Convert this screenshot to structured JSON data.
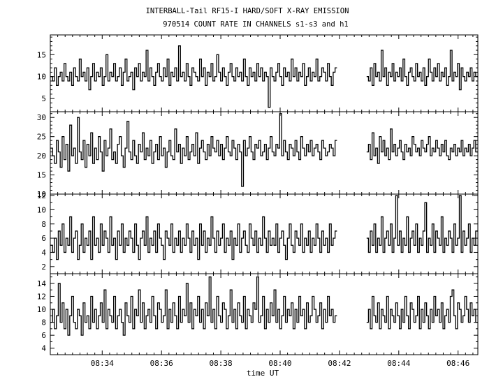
{
  "chart_data": {
    "type": "line",
    "title": "INTERBALL-Tail RF15-I HARD/SOFT X-RAY EMISSION",
    "subtitle": "970514  COUNT RATE IN CHANNELS s1-s3 and h1",
    "xlabel": "time UT",
    "x_ticks": [
      "08:34",
      "08:36",
      "08:38",
      "08:40",
      "08:42",
      "08:44",
      "08:46"
    ],
    "x_range": [
      "08:32:15",
      "08:46:40"
    ],
    "data_gap": [
      "08:41:55",
      "08:42:55"
    ],
    "grid": false,
    "panels": [
      {
        "ylim": [
          2,
          19.5
        ],
        "yticks": [
          "5",
          "10",
          "15"
        ],
        "values": [
          10,
          9,
          12,
          8,
          10,
          11,
          9,
          13,
          10,
          9,
          11,
          8,
          12,
          10,
          9,
          14,
          10,
          11,
          9,
          12,
          7,
          10,
          13,
          9,
          11,
          10,
          12,
          8,
          10,
          15,
          9,
          11,
          10,
          13,
          9,
          10,
          12,
          8,
          11,
          14,
          9,
          10,
          11,
          7,
          12,
          10,
          13,
          9,
          11,
          10,
          16,
          9,
          12,
          10,
          8,
          11,
          13,
          10,
          9,
          12,
          10,
          14,
          8,
          11,
          10,
          12,
          9,
          17,
          10,
          11,
          9,
          13,
          10,
          8,
          12,
          11,
          10,
          9,
          14,
          10,
          12,
          8,
          11,
          10,
          13,
          9,
          10,
          15,
          11,
          9,
          12,
          10,
          8,
          11,
          13,
          10,
          9,
          12,
          10,
          11,
          9,
          14,
          10,
          8,
          12,
          10,
          11,
          9,
          13,
          10,
          12,
          9,
          11,
          10,
          3,
          12,
          10,
          9,
          11,
          13,
          10,
          8,
          12,
          10,
          11,
          9,
          14,
          10,
          12,
          9,
          11,
          10,
          13,
          8,
          10,
          12,
          9,
          11,
          10,
          14,
          9,
          10,
          12,
          11,
          9,
          13,
          10,
          8,
          11,
          12
        ],
        "values_after_gap": [
          10,
          9,
          12,
          8,
          13,
          10,
          11,
          9,
          16,
          10,
          12,
          8,
          11,
          10,
          13,
          9,
          11,
          10,
          12,
          9,
          14,
          10,
          8,
          11,
          12,
          10,
          9,
          13,
          10,
          11,
          9,
          12,
          8,
          10,
          14,
          11,
          9,
          12,
          10,
          13,
          9,
          11,
          10,
          12,
          8,
          10,
          16,
          9,
          11,
          10,
          13,
          7,
          12,
          10,
          9,
          11,
          10,
          12,
          9,
          11,
          10
        ]
      },
      {
        "ylim": [
          10,
          31.5
        ],
        "yticks": [
          "10",
          "15",
          "20",
          "25",
          "30"
        ],
        "values": [
          22,
          20,
          18,
          24,
          21,
          17,
          25,
          19,
          23,
          16,
          28,
          20,
          22,
          18,
          30,
          21,
          19,
          24,
          17,
          23,
          20,
          26,
          18,
          22,
          19,
          25,
          21,
          16,
          24,
          20,
          22,
          27,
          19,
          21,
          18,
          23,
          25,
          20,
          17,
          22,
          29,
          21,
          19,
          24,
          20,
          18,
          23,
          21,
          26,
          19,
          22,
          20,
          24,
          18,
          21,
          23,
          19,
          25,
          20,
          22,
          17,
          21,
          24,
          20,
          19,
          27,
          21,
          23,
          18,
          22,
          20,
          25,
          19,
          21,
          23,
          20,
          26,
          18,
          22,
          24,
          21,
          19,
          23,
          20,
          25,
          22,
          21,
          24,
          20,
          23,
          19,
          22,
          25,
          21,
          20,
          24,
          22,
          19,
          23,
          21,
          12,
          24,
          20,
          22,
          25,
          21,
          19,
          23,
          22,
          24,
          20,
          21,
          23,
          19,
          22,
          25,
          21,
          20,
          23,
          22,
          31,
          20,
          24,
          21,
          19,
          23,
          22,
          20,
          24,
          21,
          19,
          25,
          22,
          20,
          23,
          21,
          24,
          20,
          22,
          23,
          21,
          19,
          24,
          22,
          20,
          21,
          23,
          22,
          20,
          24
        ],
        "values_after_gap": [
          21,
          23,
          19,
          26,
          20,
          22,
          18,
          25,
          21,
          24,
          20,
          22,
          19,
          27,
          21,
          23,
          20,
          22,
          24,
          21,
          19,
          23,
          21,
          22,
          20,
          25,
          23,
          21,
          22,
          20,
          24,
          22,
          21,
          23,
          25,
          20,
          22,
          21,
          24,
          22,
          20,
          23,
          21,
          24,
          20,
          19,
          22,
          21,
          23,
          20,
          22,
          21,
          24,
          20,
          22,
          21,
          23,
          20,
          22,
          24,
          21
        ]
      },
      {
        "ylim": [
          1,
          12.2
        ],
        "yticks": [
          "2",
          "4",
          "6",
          "8",
          "10",
          "12"
        ],
        "values": [
          5,
          4,
          6,
          3,
          7,
          5,
          8,
          4,
          6,
          5,
          9,
          4,
          6,
          7,
          3,
          5,
          8,
          4,
          6,
          5,
          7,
          3,
          9,
          5,
          6,
          4,
          8,
          5,
          7,
          6,
          4,
          9,
          5,
          6,
          3,
          7,
          5,
          8,
          4,
          6,
          5,
          7,
          6,
          4,
          8,
          5,
          3,
          6,
          7,
          5,
          9,
          4,
          6,
          5,
          7,
          4,
          8,
          6,
          5,
          3,
          7,
          6,
          5,
          8,
          4,
          6,
          5,
          7,
          4,
          6,
          5,
          8,
          6,
          4,
          7,
          5,
          6,
          3,
          8,
          5,
          7,
          4,
          6,
          5,
          9,
          6,
          4,
          7,
          5,
          6,
          8,
          4,
          6,
          5,
          7,
          3,
          6,
          5,
          8,
          4,
          6,
          7,
          5,
          4,
          8,
          6,
          5,
          7,
          4,
          6,
          5,
          9,
          6,
          4,
          7,
          5,
          6,
          5,
          8,
          4,
          6,
          7,
          5,
          3,
          6,
          8,
          5,
          4,
          7,
          6,
          5,
          8,
          4,
          6,
          5,
          7,
          4,
          6,
          5,
          8,
          6,
          4,
          7,
          5,
          6,
          4,
          8,
          5,
          6,
          7
        ],
        "values_after_gap": [
          6,
          4,
          7,
          5,
          8,
          4,
          6,
          5,
          9,
          4,
          6,
          7,
          5,
          8,
          4,
          6,
          12,
          5,
          7,
          4,
          6,
          5,
          9,
          4,
          6,
          7,
          5,
          8,
          4,
          6,
          5,
          7,
          11,
          4,
          6,
          5,
          8,
          4,
          7,
          6,
          5,
          9,
          4,
          6,
          5,
          7,
          6,
          4,
          8,
          5,
          6,
          12,
          4,
          7,
          5,
          6,
          8,
          4,
          6,
          5,
          7
        ]
      },
      {
        "ylim": [
          3,
          15.5
        ],
        "yticks": [
          "4",
          "6",
          "8",
          "10",
          "12",
          "14"
        ],
        "values": [
          8,
          10,
          7,
          9,
          14,
          8,
          11,
          7,
          10,
          6,
          9,
          12,
          8,
          7,
          10,
          9,
          6,
          11,
          8,
          9,
          7,
          12,
          8,
          10,
          7,
          9,
          11,
          8,
          13,
          7,
          10,
          9,
          8,
          12,
          7,
          9,
          10,
          8,
          6,
          11,
          9,
          8,
          12,
          7,
          10,
          9,
          13,
          8,
          11,
          7,
          9,
          10,
          8,
          12,
          9,
          7,
          11,
          10,
          8,
          9,
          13,
          7,
          10,
          8,
          11,
          9,
          7,
          12,
          8,
          10,
          9,
          14,
          8,
          11,
          7,
          10,
          9,
          12,
          8,
          10,
          7,
          11,
          9,
          15,
          8,
          10,
          7,
          12,
          9,
          8,
          11,
          10,
          7,
          9,
          13,
          8,
          10,
          7,
          11,
          9,
          8,
          12,
          7,
          10,
          9,
          8,
          11,
          10,
          15,
          8,
          9,
          12,
          7,
          10,
          8,
          11,
          9,
          13,
          8,
          10,
          7,
          9,
          12,
          8,
          10,
          9,
          11,
          7,
          10,
          8,
          12,
          9,
          10,
          7,
          11,
          8,
          9,
          12,
          10,
          8,
          9,
          11,
          7,
          10,
          8,
          12,
          9,
          10,
          8,
          9
        ],
        "values_after_gap": [
          8,
          10,
          7,
          12,
          9,
          8,
          11,
          7,
          10,
          9,
          8,
          12,
          7,
          10,
          9,
          8,
          11,
          9,
          7,
          10,
          8,
          12,
          9,
          7,
          11,
          10,
          8,
          9,
          12,
          7,
          10,
          8,
          11,
          9,
          7,
          10,
          8,
          12,
          9,
          10,
          8,
          11,
          7,
          9,
          10,
          8,
          12,
          13,
          9,
          7,
          11,
          10,
          8,
          9,
          12,
          10,
          8,
          11,
          9,
          10,
          8
        ]
      }
    ]
  }
}
